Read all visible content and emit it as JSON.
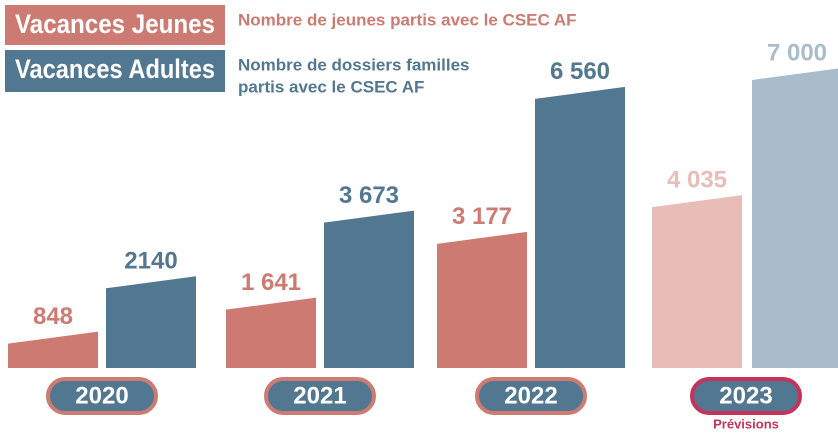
{
  "chart_data": {
    "type": "bar",
    "categories": [
      "2020",
      "2021",
      "2022",
      "2023"
    ],
    "annotations": [
      "Prévisions"
    ],
    "series": [
      {
        "name": "Vacances Jeunes",
        "description": [
          "Nombre de jeunes partis avec le CSEC AF"
        ],
        "color": "#cd7b72",
        "colors": [
          "#cd7b72",
          "#cd7b72",
          "#cd7b72",
          "#e8bdb7"
        ],
        "values": [
          848,
          1641,
          3177,
          4035
        ],
        "value_labels": [
          "848",
          "1 641",
          "3 177",
          "4 035"
        ]
      },
      {
        "name": "Vacances Adultes",
        "description": [
          "Nombre de dossiers familles",
          "partis avec le CSEC AF"
        ],
        "color": "#527891",
        "colors": [
          "#527891",
          "#527891",
          "#527891",
          "#a9bccb"
        ],
        "values": [
          2140,
          3673,
          6560,
          7000
        ],
        "value_labels": [
          "2140",
          "3 673",
          "6 560",
          "7 000"
        ]
      }
    ]
  }
}
